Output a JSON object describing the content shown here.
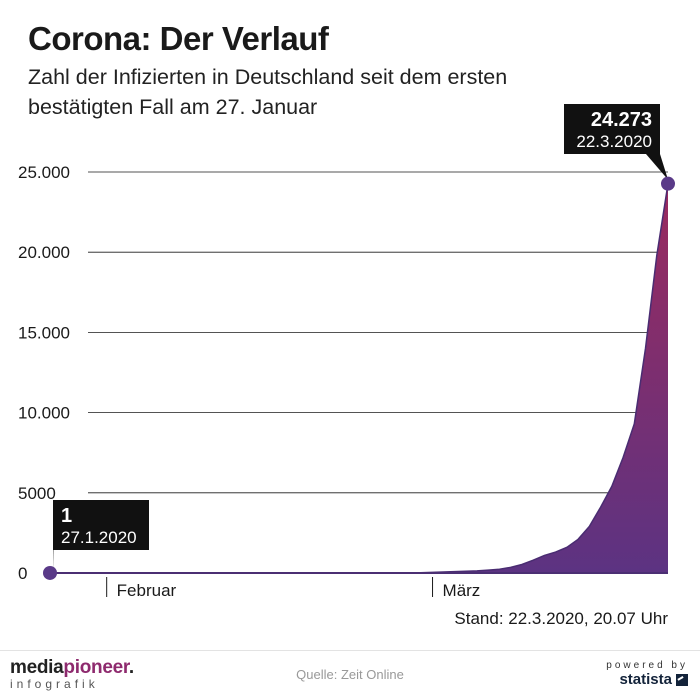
{
  "header": {
    "title": "Corona: Der Verlauf",
    "subtitle": "Zahl der Infizierten in Deutschland seit dem ersten bestätigten Fall am 27. Januar"
  },
  "chart_data": {
    "type": "area",
    "x_unit": "days since 27.1.2020",
    "x": [
      0,
      5,
      10,
      15,
      20,
      25,
      30,
      33,
      35,
      37,
      38,
      39,
      40,
      41,
      42,
      43,
      44,
      45,
      46,
      47,
      48,
      49,
      50,
      51,
      52,
      53,
      54,
      55
    ],
    "values": [
      1,
      12,
      14,
      16,
      16,
      16,
      16,
      20,
      60,
      110,
      130,
      180,
      240,
      350,
      530,
      800,
      1100,
      1300,
      1600,
      2100,
      2900,
      4100,
      5400,
      7200,
      9300,
      14000,
      19800,
      24273
    ],
    "ylim": [
      0,
      25000
    ],
    "yticks": [
      0,
      5000,
      10000,
      15000,
      20000,
      25000
    ],
    "ytick_labels": [
      "0",
      "5000",
      "10.000",
      "15.000",
      "20.000",
      "25.000"
    ],
    "xticks": [
      {
        "day": 5,
        "label": "Februar"
      },
      {
        "day": 34,
        "label": "März"
      }
    ],
    "grid": true,
    "callouts": [
      {
        "value": "1",
        "date": "27.1.2020",
        "day": 0,
        "y": 1
      },
      {
        "value": "24.273",
        "date": "22.3.2020",
        "day": 55,
        "y": 24273
      }
    ],
    "colors": {
      "area_top": "#9b2a5e",
      "area_bottom": "#5c3382",
      "line": "#4a2c72",
      "marker": "#5a3a88",
      "callout_bg": "#111111",
      "grid": "#1a1a1a"
    }
  },
  "stand": "Stand: 22.3.2020, 20.07 Uhr",
  "footer": {
    "logo_main_a": "media",
    "logo_main_b": "pioneer",
    "logo_dot": ".",
    "logo_sub": "infografik",
    "source": "Quelle: Zeit Online",
    "powered_by": "powered by",
    "brand": "statista"
  }
}
